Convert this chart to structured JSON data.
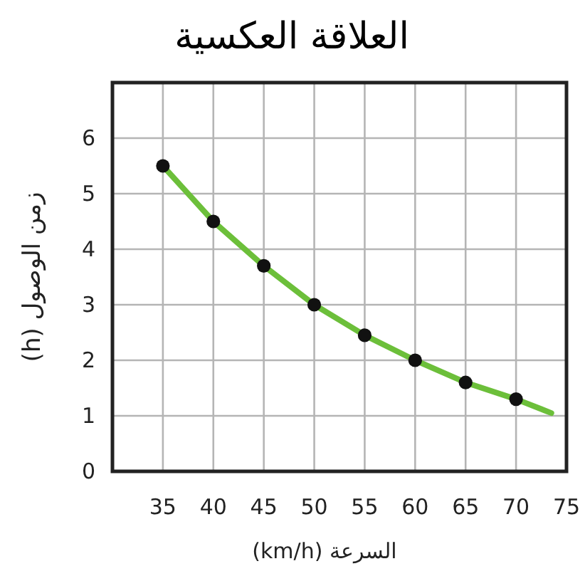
{
  "chart_data": {
    "type": "line",
    "title": "العلاقة العكسية",
    "xlabel": "السرعة (km/h)",
    "ylabel": "زمن الوصول (h)",
    "xlim": [
      30,
      75
    ],
    "xticks": [
      35,
      40,
      45,
      50,
      55,
      60,
      65,
      70,
      75
    ],
    "ylim": [
      0,
      7
    ],
    "yticks": [
      0,
      1,
      2,
      3,
      4,
      5,
      6
    ],
    "grid": true,
    "series": [
      {
        "color": "#6cbf3a",
        "marker": "none",
        "x": [
          35,
          40,
          45,
          50,
          55,
          60,
          65,
          70,
          73.5
        ],
        "values": [
          5.5,
          4.5,
          3.7,
          3.0,
          2.45,
          2.0,
          1.6,
          1.3,
          1.05
        ]
      },
      {
        "type": "scatter",
        "color": "#111111",
        "marker": "circle",
        "x": [
          35,
          40,
          45,
          50,
          55,
          60,
          65,
          70
        ],
        "values": [
          5.5,
          4.5,
          3.7,
          3.0,
          2.45,
          2.0,
          1.6,
          1.3
        ]
      }
    ]
  }
}
